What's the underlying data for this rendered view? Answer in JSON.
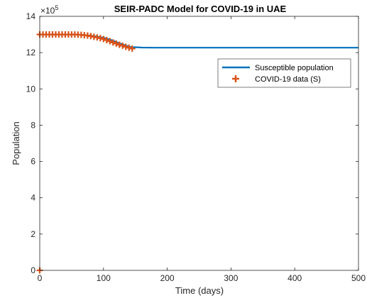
{
  "chart_data": {
    "type": "line",
    "title": "SEIR-PADC Model for COVID-19 in UAE",
    "xlabel": "Time (days)",
    "ylabel": "Population",
    "y_multiplier_label": "×10",
    "y_multiplier_exponent": "5",
    "xlim": [
      0,
      500
    ],
    "ylim": [
      0,
      14
    ],
    "x_ticks": [
      0,
      100,
      200,
      300,
      400,
      500
    ],
    "y_ticks": [
      0,
      2,
      4,
      6,
      8,
      10,
      12,
      14
    ],
    "x_tick_labels": [
      "0",
      "100",
      "200",
      "300",
      "400",
      "500"
    ],
    "y_tick_labels": [
      "0",
      "2",
      "4",
      "6",
      "8",
      "10",
      "12",
      "14"
    ],
    "legend_position": "top-right",
    "series": [
      {
        "name": "Susceptible population",
        "style": "line",
        "color": "#0072BD",
        "x": [
          0,
          20,
          40,
          60,
          80,
          100,
          110,
          120,
          130,
          140,
          145,
          150,
          160,
          180,
          200,
          250,
          300,
          350,
          400,
          450,
          500
        ],
        "y": [
          13.0,
          13.0,
          13.0,
          12.99,
          12.94,
          12.82,
          12.72,
          12.58,
          12.45,
          12.33,
          12.29,
          12.3,
          12.28,
          12.27,
          12.27,
          12.27,
          12.27,
          12.27,
          12.27,
          12.27,
          12.27
        ]
      },
      {
        "name": "COVID-19 data (S)",
        "style": "plus-marker",
        "color": "#D95319",
        "x": [
          0,
          0,
          5,
          10,
          15,
          20,
          25,
          30,
          35,
          40,
          45,
          50,
          55,
          60,
          65,
          70,
          75,
          80,
          85,
          90,
          95,
          100,
          105,
          110,
          115,
          120,
          125,
          130,
          135,
          140,
          145
        ],
        "y": [
          0,
          13.0,
          13.0,
          13.0,
          13.0,
          13.0,
          13.0,
          13.0,
          13.0,
          13.0,
          13.0,
          13.0,
          13.0,
          12.99,
          12.98,
          12.96,
          12.94,
          12.91,
          12.87,
          12.84,
          12.8,
          12.75,
          12.69,
          12.63,
          12.56,
          12.5,
          12.43,
          12.38,
          12.32,
          12.27,
          12.22
        ]
      }
    ]
  }
}
